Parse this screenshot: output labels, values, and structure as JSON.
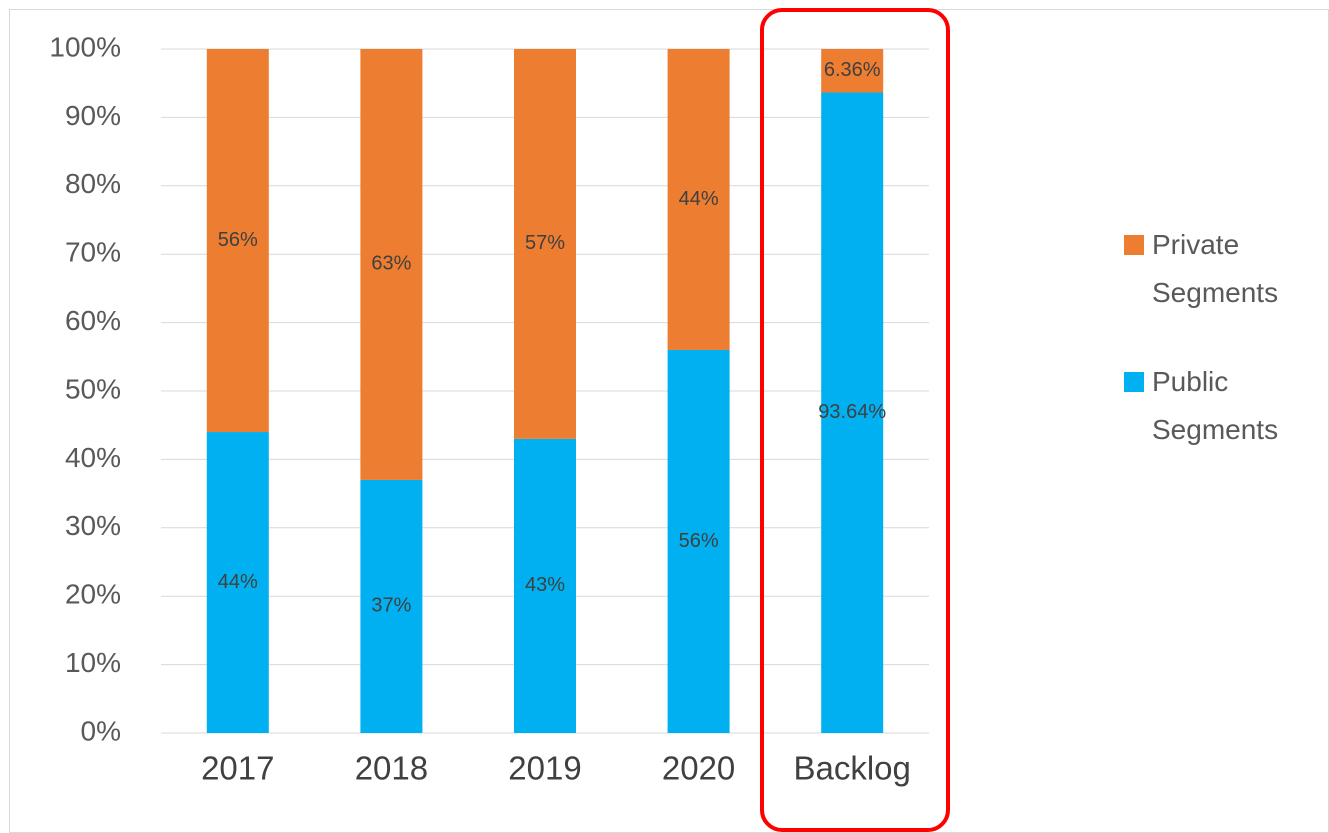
{
  "chart_data": {
    "type": "bar",
    "stacked": true,
    "categories": [
      "2017",
      "2018",
      "2019",
      "2020",
      "Backlog"
    ],
    "series": [
      {
        "name": "Public Segments",
        "color": "#00B0F0",
        "values": [
          44,
          37,
          43,
          56,
          93.64
        ],
        "value_labels": [
          "44%",
          "37%",
          "43%",
          "56%",
          "93.64%"
        ]
      },
      {
        "name": "Private Segments",
        "color": "#ED7D31",
        "values": [
          56,
          63,
          57,
          44,
          6.36
        ],
        "value_labels": [
          "56%",
          "63%",
          "57%",
          "44%",
          "6.36%"
        ]
      }
    ],
    "ylim": [
      0,
      100
    ],
    "yticks": [
      {
        "value": 0,
        "label": "0%"
      },
      {
        "value": 10,
        "label": "10%"
      },
      {
        "value": 20,
        "label": "20%"
      },
      {
        "value": 30,
        "label": "30%"
      },
      {
        "value": 40,
        "label": "40%"
      },
      {
        "value": 50,
        "label": "50%"
      },
      {
        "value": 60,
        "label": "60%"
      },
      {
        "value": 70,
        "label": "70%"
      },
      {
        "value": 80,
        "label": "80%"
      },
      {
        "value": 90,
        "label": "90%"
      },
      {
        "value": 100,
        "label": "100%"
      }
    ],
    "grid": true,
    "legend": "right"
  }
}
